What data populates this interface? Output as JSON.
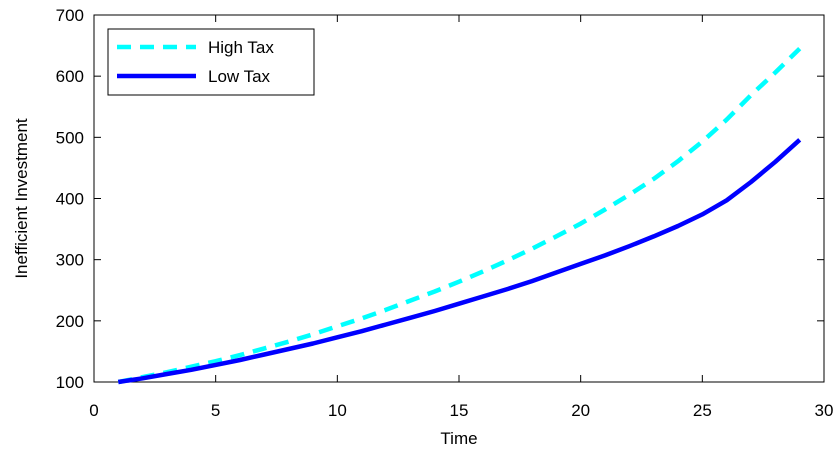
{
  "chart_data": {
    "type": "line",
    "title": "",
    "xlabel": "Time",
    "ylabel": "Inefficient Investment",
    "xlim": [
      0,
      30
    ],
    "ylim": [
      100,
      700
    ],
    "xticks": [
      0,
      5,
      10,
      15,
      20,
      25,
      30
    ],
    "yticks": [
      100,
      200,
      300,
      400,
      500,
      600,
      700
    ],
    "grid": false,
    "legend_position": "top-left",
    "x": [
      1,
      2,
      3,
      4,
      5,
      6,
      7,
      8,
      9,
      10,
      11,
      12,
      13,
      14,
      15,
      16,
      17,
      18,
      19,
      20,
      21,
      22,
      23,
      24,
      25,
      26,
      27,
      28,
      29
    ],
    "series": [
      {
        "name": "High Tax",
        "color": "#00ffff",
        "style": "dashed",
        "values": [
          100,
          108,
          116,
          125,
          134,
          144,
          155,
          166,
          178,
          191,
          204,
          218,
          233,
          248,
          264,
          281,
          299,
          318,
          338,
          359,
          382,
          406,
          432,
          461,
          493,
          529,
          569,
          606,
          645
        ]
      },
      {
        "name": "Low Tax",
        "color": "#0000ff",
        "style": "solid",
        "values": [
          100,
          106,
          113,
          120,
          128,
          136,
          145,
          154,
          163,
          173,
          183,
          194,
          205,
          216,
          228,
          240,
          252,
          265,
          279,
          293,
          307,
          322,
          338,
          355,
          374,
          397,
          427,
          460,
          496
        ]
      }
    ]
  }
}
